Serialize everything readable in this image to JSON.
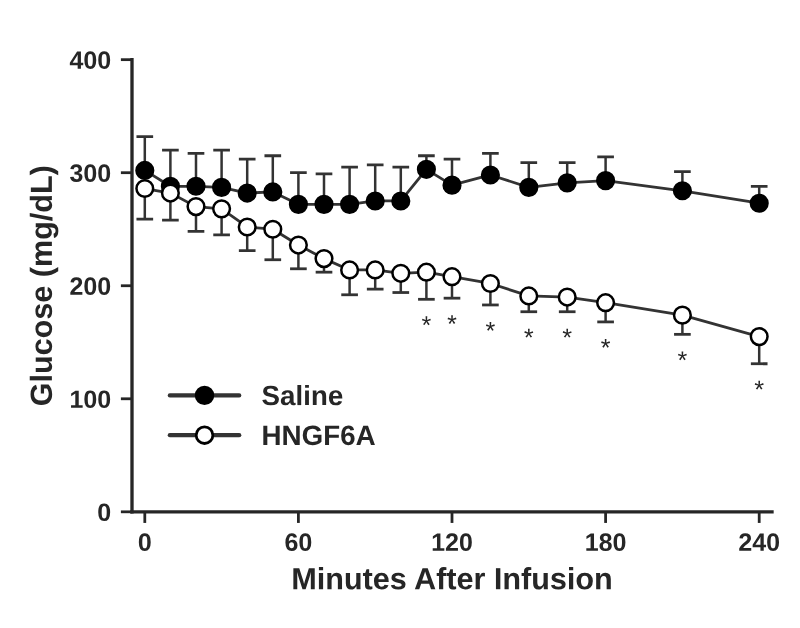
{
  "chart_data": {
    "type": "line",
    "xlabel": "Minutes After Infusion",
    "ylabel": "Glucose (mg/dL)",
    "x": [
      0,
      10,
      20,
      30,
      40,
      50,
      60,
      70,
      80,
      90,
      100,
      110,
      120,
      135,
      150,
      165,
      180,
      210,
      240
    ],
    "series": [
      {
        "name": "Saline",
        "color": "#000000",
        "marker": "circle",
        "values": [
          302,
          288,
          288,
          287,
          282,
          283,
          272,
          272,
          272,
          275,
          275,
          303,
          289,
          298,
          287,
          291,
          293,
          284,
          273
        ],
        "errors": [
          [
            302,
            332
          ],
          [
            288,
            320
          ],
          [
            288,
            317
          ],
          [
            287,
            320
          ],
          [
            282,
            312
          ],
          [
            283,
            315
          ],
          [
            272,
            300
          ],
          [
            272,
            299
          ],
          [
            272,
            305
          ],
          [
            275,
            307
          ],
          [
            275,
            305
          ],
          [
            303,
            315
          ],
          [
            289,
            312
          ],
          [
            298,
            317
          ],
          [
            287,
            309
          ],
          [
            291,
            309
          ],
          [
            293,
            314
          ],
          [
            284,
            301
          ],
          [
            273,
            288
          ]
        ]
      },
      {
        "name": "HNGF6A",
        "color": "#ffffff",
        "marker": "circle",
        "values": [
          286,
          282,
          270,
          268,
          252,
          250,
          236,
          224,
          214,
          214,
          211,
          212,
          208,
          202,
          191,
          190,
          185,
          174,
          155
        ],
        "errors": [
          [
            259,
            286
          ],
          [
            258,
            282
          ],
          [
            248,
            270
          ],
          [
            245,
            268
          ],
          [
            231,
            252
          ],
          [
            223,
            250
          ],
          [
            215,
            236
          ],
          [
            212,
            224
          ],
          [
            192,
            214
          ],
          [
            197,
            214
          ],
          [
            194,
            211
          ],
          [
            188,
            212
          ],
          [
            189,
            208
          ],
          [
            183,
            202
          ],
          [
            177,
            191
          ],
          [
            177,
            190
          ],
          [
            168,
            185
          ],
          [
            157,
            174
          ],
          [
            131,
            155
          ]
        ]
      }
    ],
    "annotations": [
      {
        "text": "*",
        "x": 110,
        "y": 212
      },
      {
        "text": "*",
        "x": 120,
        "y": 208
      },
      {
        "text": "*",
        "x": 135,
        "y": 202
      },
      {
        "text": "*",
        "x": 150,
        "y": 191
      },
      {
        "text": "*",
        "x": 165,
        "y": 190
      },
      {
        "text": "*",
        "x": 180,
        "y": 185
      },
      {
        "text": "*",
        "x": 210,
        "y": 174
      },
      {
        "text": "*",
        "x": 240,
        "y": 155
      }
    ],
    "xlim": [
      -5,
      245
    ],
    "ylim": [
      0,
      400
    ],
    "xticks": [
      0,
      60,
      120,
      180,
      240
    ],
    "yticks": [
      0,
      100,
      200,
      300,
      400
    ],
    "legend": "bottom left",
    "grid": false
  }
}
